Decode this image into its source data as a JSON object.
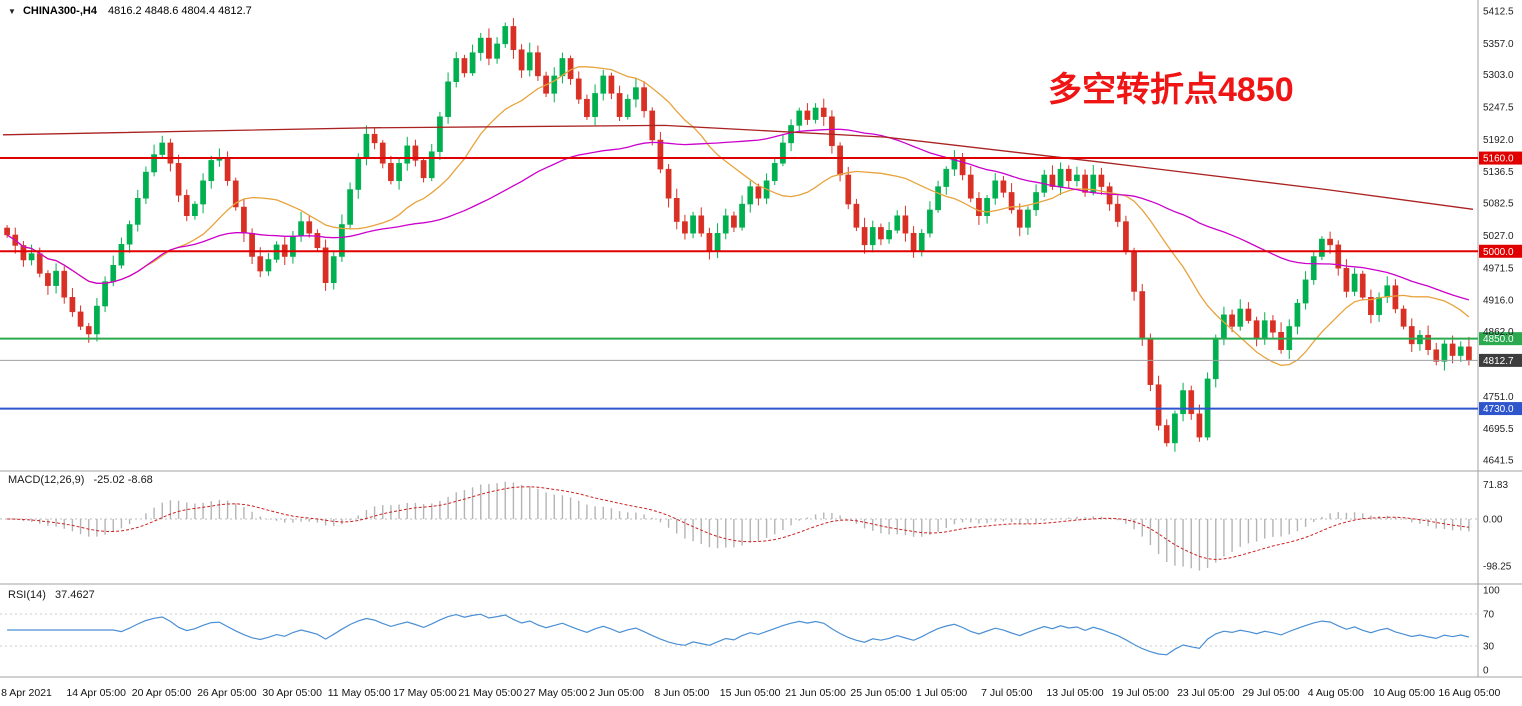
{
  "header": {
    "symbol": "CHINA300-,H4",
    "ohlc": "4816.2 4848.6 4804.4 4812.7"
  },
  "annotation": {
    "text": "多空转折点4850",
    "color": "#f01515"
  },
  "panels": {
    "macd": {
      "label": "MACD(12,26,9)",
      "values": "-25.02 -8.68",
      "ticks": [
        "71.83",
        "0.00",
        "-98.25"
      ],
      "tick_values": [
        71.83,
        0,
        -98.25
      ]
    },
    "rsi": {
      "label": "RSI(14)",
      "value": "37.4627",
      "ticks": [
        "100",
        "70",
        "30",
        "0"
      ],
      "tick_values": [
        100,
        70,
        30,
        0
      ],
      "levels": [
        70,
        30
      ]
    }
  },
  "chart_data": {
    "type": "candlestick",
    "symbol": "CHINA300-",
    "timeframe": "H4",
    "last_candle": {
      "open": 4816.2,
      "high": 4848.6,
      "low": 4804.4,
      "close": 4812.7
    },
    "closes": [
      5028,
      5010,
      4985,
      4996,
      4962,
      4941,
      4966,
      4921,
      4896,
      4871,
      4858,
      4906,
      4948,
      4976,
      5012,
      5046,
      5091,
      5136,
      5166,
      5186,
      5151,
      5096,
      5061,
      5081,
      5121,
      5156,
      5161,
      5121,
      5076,
      5031,
      4991,
      4966,
      4986,
      5011,
      4991,
      5026,
      5051,
      5031,
      5006,
      4946,
      4991,
      5046,
      5106,
      5161,
      5201,
      5186,
      5151,
      5121,
      5151,
      5181,
      5156,
      5126,
      5171,
      5231,
      5291,
      5331,
      5306,
      5341,
      5366,
      5331,
      5356,
      5386,
      5346,
      5311,
      5341,
      5301,
      5271,
      5301,
      5331,
      5296,
      5261,
      5231,
      5271,
      5301,
      5271,
      5231,
      5261,
      5281,
      5241,
      5191,
      5141,
      5091,
      5051,
      5031,
      5061,
      5031,
      5001,
      5031,
      5061,
      5041,
      5081,
      5111,
      5091,
      5121,
      5151,
      5186,
      5216,
      5241,
      5226,
      5246,
      5231,
      5181,
      5131,
      5081,
      5041,
      5011,
      5041,
      5021,
      5036,
      5061,
      5031,
      5001,
      5031,
      5071,
      5111,
      5141,
      5161,
      5131,
      5091,
      5061,
      5091,
      5121,
      5101,
      5071,
      5041,
      5071,
      5101,
      5131,
      5111,
      5141,
      5121,
      5131,
      5101,
      5131,
      5111,
      5081,
      5051,
      5001,
      4931,
      4851,
      4771,
      4701,
      4671,
      4721,
      4761,
      4721,
      4681,
      4781,
      4851,
      4891,
      4871,
      4901,
      4881,
      4851,
      4881,
      4861,
      4831,
      4871,
      4911,
      4951,
      4991,
      5021,
      5011,
      4971,
      4931,
      4961,
      4921,
      4891,
      4921,
      4941,
      4901,
      4871,
      4841,
      4856,
      4831,
      4811,
      4841,
      4821,
      4836,
      4812.7
    ],
    "price_axis": {
      "top_price": 5421,
      "bottom_price": 4628,
      "ticks": [
        "5412.5",
        "5357.0",
        "5303.0",
        "5247.5",
        "5192.0",
        "5136.5",
        "5082.5",
        "5027.0",
        "4971.5",
        "4916.0",
        "4862.0",
        "4751.0",
        "4695.5",
        "4641.5"
      ]
    },
    "hlines": [
      {
        "price": 5160.0,
        "label": "5160.0",
        "color": "#e00000",
        "badge": "#e00000",
        "width": 2
      },
      {
        "price": 5000.0,
        "label": "5000.0",
        "color": "#e00000",
        "badge": "#e00000",
        "width": 2
      },
      {
        "price": 4850.0,
        "label": "4850.0",
        "color": "#2aa94f",
        "badge": "#2aa94f",
        "width": 2
      },
      {
        "price": 4730.0,
        "label": "4730.0",
        "color": "#2e55cc",
        "badge": "#2e55cc",
        "width": 2
      },
      {
        "price": 4812.7,
        "label": "4812.7",
        "color": "#a0a0a0",
        "badge": "#3d3d3d",
        "width": 1,
        "current": true
      }
    ],
    "ma_lines": [
      {
        "name": "ma-fast",
        "period": 18,
        "color": "#e8a33d"
      },
      {
        "name": "ma-mid",
        "period": 55,
        "color": "#cc00cc"
      },
      {
        "name": "ma-slow",
        "color": "#aa2222",
        "points": [
          [
            0,
            5200
          ],
          [
            0.25,
            5212
          ],
          [
            0.45,
            5216
          ],
          [
            0.6,
            5196
          ],
          [
            0.75,
            5152
          ],
          [
            0.9,
            5106
          ],
          [
            1,
            5072
          ]
        ]
      }
    ],
    "x_label_step": 8,
    "x_labels": [
      "8 Apr 2021",
      "14 Apr 05:00",
      "20 Apr 05:00",
      "26 Apr 05:00",
      "30 Apr 05:00",
      "11 May 05:00",
      "17 May 05:00",
      "21 May 05:00",
      "27 May 05:00",
      "2 Jun 05:00",
      "8 Jun 05:00",
      "15 Jun 05:00",
      "21 Jun 05:00",
      "25 Jun 05:00",
      "1 Jul 05:00",
      "7 Jul 05:00",
      "13 Jul 05:00",
      "19 Jul 05:00",
      "23 Jul 05:00",
      "29 Jul 05:00",
      "4 Aug 05:00",
      "10 Aug 05:00",
      "16 Aug 05:00"
    ],
    "colors": {
      "up": "#00b050",
      "down": "#d93025",
      "macd_hist": "#b4b4b4",
      "macd_signal": "#cc2222",
      "rsi_line": "#4a8fd4",
      "separator": "#a0a0a0",
      "axis_text": "#222222"
    }
  }
}
